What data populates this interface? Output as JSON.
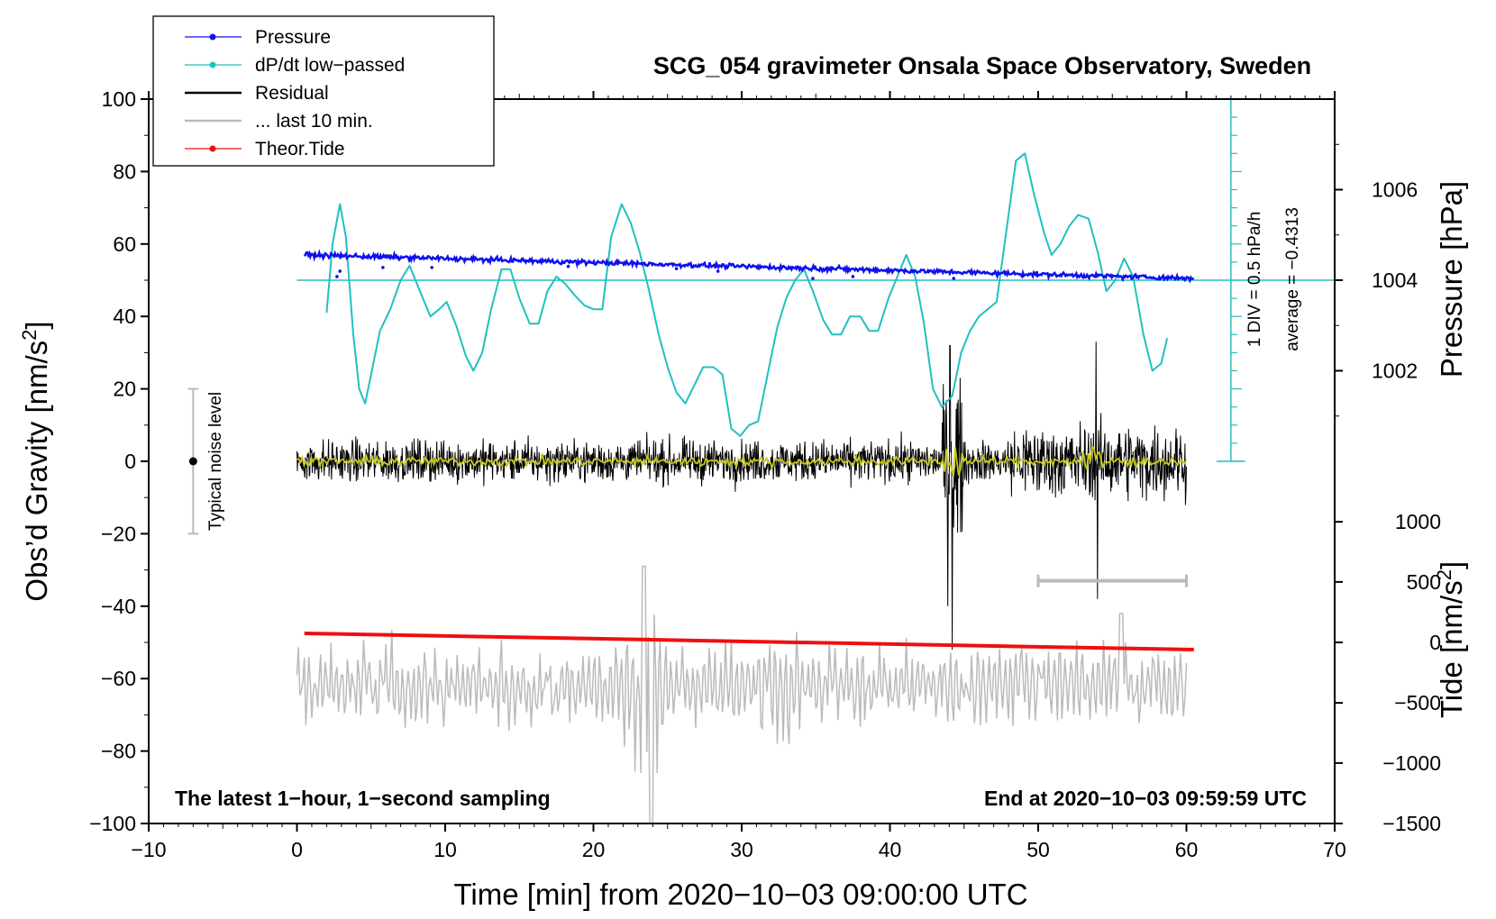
{
  "chart_data": {
    "type": "line",
    "title": "SCG_054 gravimeter Onsala Space Observatory, Sweden",
    "xlabel": "Time [min] from 2020−10−03 09:00:00 UTC",
    "ylabel_left": "Obs’d Gravity [nm/s",
    "ylabel_left_sup": "2",
    "ylabel_left_tail": "]",
    "ylabel_right_pressure": "Pressure [hPa]",
    "ylabel_right_tide": "Tide [nm/s",
    "ylabel_right_tide_sup": "2",
    "ylabel_right_tide_tail": "]",
    "xlim": [
      -10,
      70
    ],
    "ylim": [
      -100,
      100
    ],
    "x_ticks": [
      -10,
      0,
      10,
      20,
      30,
      40,
      50,
      60,
      70
    ],
    "x_tick_labels": [
      "−10",
      "0",
      "10",
      "20",
      "30",
      "40",
      "50",
      "60",
      "70"
    ],
    "y_ticks": [
      -100,
      -80,
      -60,
      -40,
      -20,
      0,
      20,
      40,
      60,
      80,
      100
    ],
    "y_tick_labels": [
      "−100",
      "−80",
      "−60",
      "−40",
      "−20",
      "0",
      "20",
      "40",
      "60",
      "80",
      "100"
    ],
    "pressure_axis": {
      "ticks": [
        1002,
        1004,
        1006
      ],
      "tick_labels": [
        "1002",
        "1004",
        "1006"
      ],
      "gravity_equiv": [
        25,
        50,
        75
      ]
    },
    "tide_axis": {
      "ticks": [
        -1500,
        -1000,
        -500,
        0,
        500,
        1000
      ],
      "tick_labels": [
        "−1500",
        "−1000",
        "−500",
        "0",
        "500",
        "1000"
      ],
      "gravity_equiv": [
        -100,
        -83.3,
        -66.7,
        -50,
        -33.3,
        -16.7
      ]
    },
    "legend": [
      {
        "label": "Pressure",
        "color": "#1010ee",
        "style": "line-dot"
      },
      {
        "label": "dP/dt low−passed",
        "color": "#20c0c0",
        "style": "line-dot"
      },
      {
        "label": "Residual",
        "color": "#000000",
        "style": "line"
      },
      {
        "label": "... last 10 min.",
        "color": "#bbbbbb",
        "style": "line"
      },
      {
        "label": "Theor.Tide",
        "color": "#ee1010",
        "style": "line-dot"
      }
    ],
    "series": [
      {
        "name": "Pressure",
        "color": "#1010ee",
        "x_start": 0.5,
        "x_end": 60.5,
        "start": 57,
        "end": 50.5
      },
      {
        "name": "dP/dt low-passed",
        "color": "#20c0c0",
        "points": [
          [
            2,
            41
          ],
          [
            2.4,
            60
          ],
          [
            2.9,
            71
          ],
          [
            3.3,
            62
          ],
          [
            3.8,
            35
          ],
          [
            4.2,
            20
          ],
          [
            4.6,
            16
          ],
          [
            5.0,
            24
          ],
          [
            5.6,
            36
          ],
          [
            6.3,
            42
          ],
          [
            7.0,
            50
          ],
          [
            7.6,
            54
          ],
          [
            8.3,
            47
          ],
          [
            9.0,
            40
          ],
          [
            9.6,
            42
          ],
          [
            10.1,
            44
          ],
          [
            10.7,
            38
          ],
          [
            11.4,
            29
          ],
          [
            11.9,
            25
          ],
          [
            12.5,
            30
          ],
          [
            13.1,
            42
          ],
          [
            13.8,
            53
          ],
          [
            14.4,
            53
          ],
          [
            15.0,
            45
          ],
          [
            15.7,
            38
          ],
          [
            16.3,
            38
          ],
          [
            16.9,
            47
          ],
          [
            17.5,
            51
          ],
          [
            18.1,
            49
          ],
          [
            18.7,
            46
          ],
          [
            19.4,
            43
          ],
          [
            20.0,
            42
          ],
          [
            20.6,
            42
          ],
          [
            21.2,
            62
          ],
          [
            21.9,
            71
          ],
          [
            22.5,
            66
          ],
          [
            23.1,
            58
          ],
          [
            23.7,
            48
          ],
          [
            24.4,
            35
          ],
          [
            25.0,
            26
          ],
          [
            25.6,
            19
          ],
          [
            26.2,
            16
          ],
          [
            26.8,
            21
          ],
          [
            27.4,
            26
          ],
          [
            28.1,
            26
          ],
          [
            28.7,
            24
          ],
          [
            29.3,
            9
          ],
          [
            29.9,
            7
          ],
          [
            30.5,
            10
          ],
          [
            31.1,
            11
          ],
          [
            31.8,
            25
          ],
          [
            32.4,
            37
          ],
          [
            33.0,
            45
          ],
          [
            33.6,
            50
          ],
          [
            34.2,
            53
          ],
          [
            34.8,
            47
          ],
          [
            35.5,
            39
          ],
          [
            36.1,
            35
          ],
          [
            36.7,
            35
          ],
          [
            37.3,
            40
          ],
          [
            38.0,
            40
          ],
          [
            38.6,
            36
          ],
          [
            39.2,
            36
          ],
          [
            39.9,
            45
          ],
          [
            40.5,
            51
          ],
          [
            41.1,
            57
          ],
          [
            41.7,
            51
          ],
          [
            42.3,
            38
          ],
          [
            42.9,
            20
          ],
          [
            43.5,
            15
          ],
          [
            44.2,
            18
          ],
          [
            44.8,
            30
          ],
          [
            45.4,
            36
          ],
          [
            46.0,
            40
          ],
          [
            46.6,
            42
          ],
          [
            47.2,
            44
          ],
          [
            47.8,
            62
          ],
          [
            48.5,
            83
          ],
          [
            49.1,
            85
          ],
          [
            49.7,
            74
          ],
          [
            50.4,
            63
          ],
          [
            50.9,
            57
          ],
          [
            51.5,
            60
          ],
          [
            52.1,
            65
          ],
          [
            52.7,
            68
          ],
          [
            53.4,
            67
          ],
          [
            54.0,
            58
          ],
          [
            54.6,
            47
          ],
          [
            55.2,
            50
          ],
          [
            55.8,
            56
          ],
          [
            56.4,
            51
          ],
          [
            57.1,
            35
          ],
          [
            57.7,
            25
          ],
          [
            58.3,
            27
          ],
          [
            58.7,
            34
          ]
        ]
      },
      {
        "name": "Residual",
        "color": "#000000",
        "x_start": 0,
        "x_end": 60,
        "baseline": 0
      },
      {
        "name": "... last 10 min.",
        "color": "#bbbbbb",
        "x_start": 0,
        "x_end": 60,
        "baseline": -62
      },
      {
        "name": "Theor.Tide",
        "color": "#ee1010",
        "x_start": 0.5,
        "x_end": 60.5,
        "start": -47.5,
        "end": -52
      }
    ],
    "noise_level_label": "Typical noise level",
    "noise_bar": {
      "x": -7,
      "center": 0,
      "low": -20,
      "high": 20
    },
    "ten_min_bar": {
      "x_start": 50,
      "x_end": 60,
      "y": -33
    },
    "scale_bar": {
      "x": 63,
      "bottom": 0,
      "top": 100,
      "average_y": 50
    },
    "scale_label_1": "1 DIV = 0.5 hPa/h",
    "scale_label_2": "average = −0.4313",
    "note_left": "The latest 1−hour, 1−second sampling",
    "note_right": "End at 2020−10−03 09:59:59 UTC"
  }
}
